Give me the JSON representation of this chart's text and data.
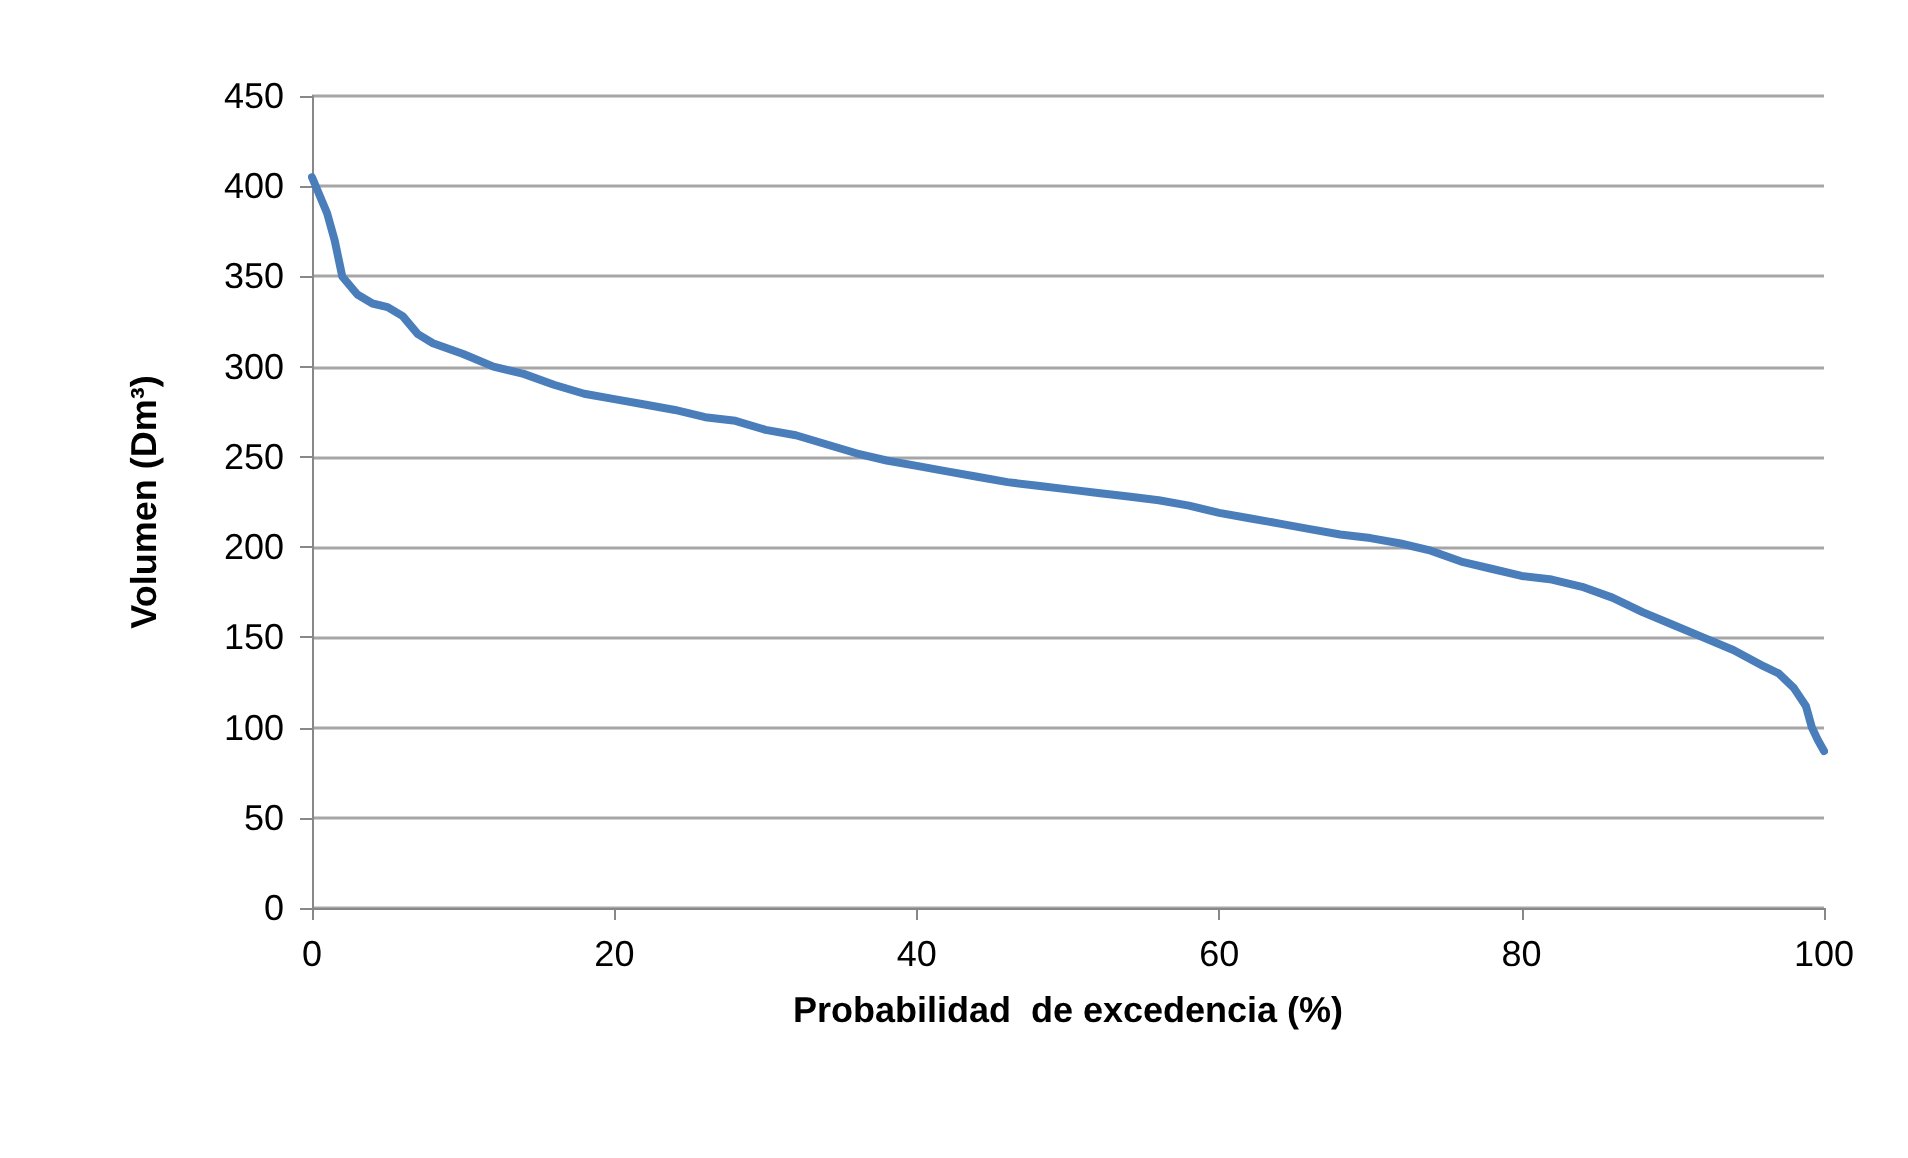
{
  "chart_data": {
    "type": "line",
    "xlabel": "Probabilidad  de excedencia (%)",
    "ylabel": "Volumen (Dm³)",
    "x": [
      0,
      0.5,
      1,
      1.5,
      2,
      3,
      4,
      5,
      6,
      7,
      8,
      10,
      12,
      14,
      16,
      18,
      20,
      22,
      24,
      26,
      28,
      30,
      32,
      34,
      36,
      38,
      40,
      42,
      44,
      46,
      48,
      50,
      52,
      54,
      56,
      58,
      60,
      62,
      64,
      66,
      68,
      70,
      72,
      74,
      76,
      78,
      80,
      82,
      84,
      86,
      88,
      90,
      92,
      94,
      96,
      97,
      98,
      98.8,
      99.2,
      99.6,
      100
    ],
    "series": [
      {
        "color": "#4a7ebb",
        "values": [
          405,
          395,
          385,
          370,
          350,
          340,
          335,
          333,
          328,
          318,
          313,
          307,
          300,
          296,
          290,
          285,
          282,
          279,
          276,
          272,
          270,
          265,
          262,
          257,
          252,
          248,
          245,
          242,
          239,
          236,
          234,
          232,
          230,
          228,
          226,
          223,
          219,
          216,
          213,
          210,
          207,
          205,
          202,
          198,
          192,
          188,
          184,
          182,
          178,
          172,
          164,
          157,
          150,
          143,
          134,
          130,
          122,
          112,
          100,
          93,
          87
        ]
      }
    ],
    "xlim": [
      0,
      100
    ],
    "xticks": [
      0,
      20,
      40,
      60,
      80,
      100
    ],
    "ylim": [
      0,
      450
    ],
    "yticks": [
      0,
      50,
      100,
      150,
      200,
      250,
      300,
      350,
      400,
      450
    ],
    "grid": "y",
    "marker": "none",
    "line_style": "solid"
  }
}
